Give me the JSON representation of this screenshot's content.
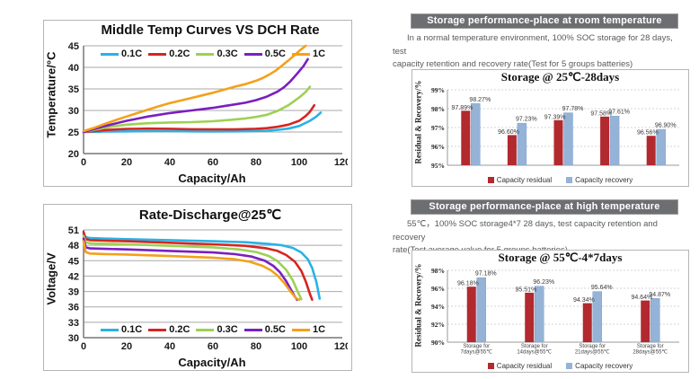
{
  "right": {
    "section1": {
      "header": "Storage performance-place at room  temperature",
      "para_line1": "In a normal temperature environment, 100% SOC storage for 28 days, test",
      "para_line2": "capacity retention and recovery rate(Test for 5 groups batteries)"
    },
    "section2": {
      "header": "Storage performance-place at high  temperature",
      "para_line1": "55℃，100% SOC storage4*7 28 days, test capacity retention and recovery",
      "para_line2": "rate(Test average value for 5 groups batteries)"
    }
  },
  "chart_data": [
    {
      "id": "middle-temp-curves",
      "type": "line",
      "title": "Middle Temp Curves VS DCH Rate",
      "xlabel": "Capacity/Ah",
      "ylabel": "Temperature/°C",
      "xlim": [
        0,
        120
      ],
      "ylim": [
        20,
        45
      ],
      "xticks": [
        0,
        20,
        40,
        60,
        80,
        100,
        120
      ],
      "yticks": [
        20,
        25,
        30,
        35,
        40,
        45
      ],
      "grid": "horizontal",
      "legend_position": "top-inside",
      "series": [
        {
          "name": "0.1C",
          "color": "#29b2e6",
          "points": [
            [
              0,
              25
            ],
            [
              5,
              25.05
            ],
            [
              10,
              25.1
            ],
            [
              20,
              25.15
            ],
            [
              30,
              25.2
            ],
            [
              40,
              25.2
            ],
            [
              50,
              25.15
            ],
            [
              60,
              25.1
            ],
            [
              70,
              25.15
            ],
            [
              80,
              25.2
            ],
            [
              85,
              25.3
            ],
            [
              90,
              25.5
            ],
            [
              95,
              25.8
            ],
            [
              100,
              26.4
            ],
            [
              105,
              27.6
            ],
            [
              108,
              28.6
            ],
            [
              110,
              29.5
            ]
          ]
        },
        {
          "name": "0.2C",
          "color": "#d62520",
          "points": [
            [
              0,
              25
            ],
            [
              5,
              25.2
            ],
            [
              10,
              25.45
            ],
            [
              15,
              25.6
            ],
            [
              20,
              25.7
            ],
            [
              25,
              25.75
            ],
            [
              30,
              25.8
            ],
            [
              40,
              25.75
            ],
            [
              50,
              25.65
            ],
            [
              60,
              25.6
            ],
            [
              70,
              25.6
            ],
            [
              80,
              25.75
            ],
            [
              85,
              25.9
            ],
            [
              90,
              26.2
            ],
            [
              95,
              26.7
            ],
            [
              100,
              27.6
            ],
            [
              103,
              28.7
            ],
            [
              105,
              29.7
            ],
            [
              107,
              31.2
            ]
          ]
        },
        {
          "name": "0.3C",
          "color": "#9dd153",
          "points": [
            [
              0,
              25
            ],
            [
              5,
              25.5
            ],
            [
              10,
              26
            ],
            [
              15,
              26.4
            ],
            [
              20,
              26.7
            ],
            [
              25,
              26.9
            ],
            [
              30,
              27.05
            ],
            [
              40,
              27.2
            ],
            [
              50,
              27.3
            ],
            [
              60,
              27.5
            ],
            [
              70,
              27.9
            ],
            [
              75,
              28.15
            ],
            [
              80,
              28.5
            ],
            [
              85,
              29
            ],
            [
              90,
              29.9
            ],
            [
              95,
              31.2
            ],
            [
              100,
              33
            ],
            [
              103,
              34.3
            ],
            [
              105,
              35.5
            ]
          ]
        },
        {
          "name": "0.5C",
          "color": "#7a1fc0",
          "points": [
            [
              0,
              25
            ],
            [
              5,
              25.7
            ],
            [
              10,
              26.4
            ],
            [
              15,
              27
            ],
            [
              20,
              27.6
            ],
            [
              25,
              28.1
            ],
            [
              30,
              28.6
            ],
            [
              35,
              29
            ],
            [
              40,
              29.4
            ],
            [
              45,
              29.7
            ],
            [
              50,
              30
            ],
            [
              55,
              30.3
            ],
            [
              60,
              30.6
            ],
            [
              65,
              31
            ],
            [
              70,
              31.4
            ],
            [
              75,
              31.8
            ],
            [
              80,
              32.4
            ],
            [
              85,
              33.2
            ],
            [
              90,
              34.4
            ],
            [
              93,
              35.4
            ],
            [
              96,
              36.8
            ],
            [
              99,
              38.5
            ],
            [
              102,
              40.3
            ],
            [
              104,
              41.9
            ]
          ]
        },
        {
          "name": "1C",
          "color": "#f3a11a",
          "points": [
            [
              0,
              25.2
            ],
            [
              5,
              26
            ],
            [
              10,
              26.9
            ],
            [
              15,
              27.8
            ],
            [
              20,
              28.6
            ],
            [
              25,
              29.4
            ],
            [
              30,
              30.2
            ],
            [
              35,
              31
            ],
            [
              40,
              31.7
            ],
            [
              45,
              32.3
            ],
            [
              50,
              32.9
            ],
            [
              55,
              33.5
            ],
            [
              60,
              34.1
            ],
            [
              65,
              34.8
            ],
            [
              70,
              35.5
            ],
            [
              75,
              36.1
            ],
            [
              80,
              36.9
            ],
            [
              83,
              37.5
            ],
            [
              86,
              38.3
            ],
            [
              89,
              39.2
            ],
            [
              92,
              40.4
            ],
            [
              95,
              41.6
            ],
            [
              98,
              42.9
            ],
            [
              100,
              43.8
            ],
            [
              103,
              45
            ]
          ]
        }
      ]
    },
    {
      "id": "rate-discharge-25c",
      "type": "line",
      "title": "Rate-Discharge@25℃",
      "xlabel": "Capacity/Ah",
      "ylabel": "Voltage/V",
      "xlim": [
        0,
        120
      ],
      "ylim": [
        30,
        51
      ],
      "xticks": [
        0,
        20,
        40,
        60,
        80,
        100,
        120
      ],
      "yticks": [
        30,
        33,
        36,
        39,
        42,
        45,
        48,
        51
      ],
      "grid": "horizontal",
      "legend_position": "bottom-inside",
      "series": [
        {
          "name": "0.1C",
          "color": "#29b2e6",
          "points": [
            [
              0,
              50.2
            ],
            [
              1,
              49.6
            ],
            [
              3,
              49.4
            ],
            [
              10,
              49.3
            ],
            [
              20,
              49.2
            ],
            [
              40,
              49
            ],
            [
              60,
              48.8
            ],
            [
              75,
              48.6
            ],
            [
              85,
              48.3
            ],
            [
              92,
              48
            ],
            [
              97,
              47.5
            ],
            [
              101,
              46.6
            ],
            [
              104,
              45.3
            ],
            [
              106,
              43.6
            ],
            [
              108,
              40.8
            ],
            [
              109.5,
              37.6
            ]
          ]
        },
        {
          "name": "0.2C",
          "color": "#d62520",
          "points": [
            [
              0,
              50.6
            ],
            [
              1,
              49.2
            ],
            [
              3,
              49
            ],
            [
              10,
              48.9
            ],
            [
              20,
              48.8
            ],
            [
              40,
              48.5
            ],
            [
              60,
              48.2
            ],
            [
              75,
              47.9
            ],
            [
              85,
              47.4
            ],
            [
              90,
              46.9
            ],
            [
              94,
              46.1
            ],
            [
              98,
              44.8
            ],
            [
              101,
              43
            ],
            [
              103,
              41
            ],
            [
              105,
              38.5
            ],
            [
              106,
              37.4
            ]
          ]
        },
        {
          "name": "0.3C",
          "color": "#9dd153",
          "points": [
            [
              0,
              49.8
            ],
            [
              1,
              48.6
            ],
            [
              3,
              48.4
            ],
            [
              10,
              48.3
            ],
            [
              20,
              48.2
            ],
            [
              40,
              47.9
            ],
            [
              60,
              47.6
            ],
            [
              72,
              47.2
            ],
            [
              80,
              46.7
            ],
            [
              86,
              45.9
            ],
            [
              90,
              44.9
            ],
            [
              94,
              43.2
            ],
            [
              97,
              41.2
            ],
            [
              99,
              39.3
            ],
            [
              101,
              37.5
            ]
          ]
        },
        {
          "name": "0.5C",
          "color": "#7a1fc0",
          "points": [
            [
              0,
              49.3
            ],
            [
              1,
              47.6
            ],
            [
              3,
              47.4
            ],
            [
              10,
              47.3
            ],
            [
              20,
              47.2
            ],
            [
              40,
              46.9
            ],
            [
              60,
              46.6
            ],
            [
              70,
              46.3
            ],
            [
              78,
              45.8
            ],
            [
              84,
              45
            ],
            [
              88,
              44
            ],
            [
              91,
              42.8
            ],
            [
              94,
              41
            ],
            [
              96,
              39.5
            ],
            [
              98,
              38
            ],
            [
              99,
              37.4
            ]
          ]
        },
        {
          "name": "1C",
          "color": "#f3a11a",
          "points": [
            [
              0,
              48.8
            ],
            [
              1,
              46.7
            ],
            [
              3,
              46.4
            ],
            [
              10,
              46.3
            ],
            [
              20,
              46.2
            ],
            [
              40,
              45.9
            ],
            [
              60,
              45.6
            ],
            [
              70,
              45.3
            ],
            [
              77,
              44.8
            ],
            [
              83,
              44
            ],
            [
              87,
              43.1
            ],
            [
              90,
              42.1
            ],
            [
              93,
              40.7
            ],
            [
              96,
              39
            ],
            [
              98.5,
              37.7
            ],
            [
              100,
              37.4
            ]
          ]
        }
      ]
    },
    {
      "id": "storage-25c-28days",
      "type": "bar",
      "title": "Storage @ 25℃-28days",
      "ylabel": "Residual & Recovery/%",
      "ylim": [
        95,
        99
      ],
      "yticks": [
        95,
        96,
        97,
        98,
        99
      ],
      "grid": "dotted-horizontal",
      "categories": [
        [],
        [],
        [],
        [],
        []
      ],
      "series": [
        {
          "name": "Capacity residual",
          "color": "#b2292e",
          "values": [
            97.89,
            96.6,
            97.39,
            97.58,
            96.56
          ],
          "labels": [
            "97.89%",
            "96.60%",
            "97.39%",
            "97.58%",
            "96.56%"
          ]
        },
        {
          "name": "Capacity recovery",
          "color": "#95b3d7",
          "values": [
            98.27,
            97.23,
            97.78,
            97.61,
            96.9
          ],
          "labels": [
            "98.27%",
            "97.23%",
            "97.78%",
            "97.61%",
            "96.90%"
          ]
        }
      ]
    },
    {
      "id": "storage-55c-4x7days",
      "type": "bar",
      "title": "Storage @ 55℃-4*7days",
      "ylabel": "Residual & Recovery/%",
      "ylim": [
        90,
        98
      ],
      "yticks": [
        90,
        92,
        94,
        96,
        98
      ],
      "grid": "dotted-horizontal",
      "categories": [
        [
          "Storage for",
          "7days@55℃"
        ],
        [
          "Storage for",
          "14days@55℃"
        ],
        [
          "Storage for",
          "21days@55℃"
        ],
        [
          "Storage for",
          "28days@55℃"
        ]
      ],
      "series": [
        {
          "name": "Capacity residual",
          "color": "#b2292e",
          "values": [
            96.18,
            95.51,
            94.34,
            94.64
          ],
          "labels": [
            "96.18%",
            "95.51%",
            "94.34%",
            "94.64%"
          ]
        },
        {
          "name": "Capacity recovery",
          "color": "#95b3d7",
          "values": [
            97.18,
            96.23,
            95.64,
            94.87
          ],
          "labels": [
            "97.18%",
            "96.23%",
            "95.64%",
            "94.87%"
          ]
        }
      ]
    }
  ]
}
